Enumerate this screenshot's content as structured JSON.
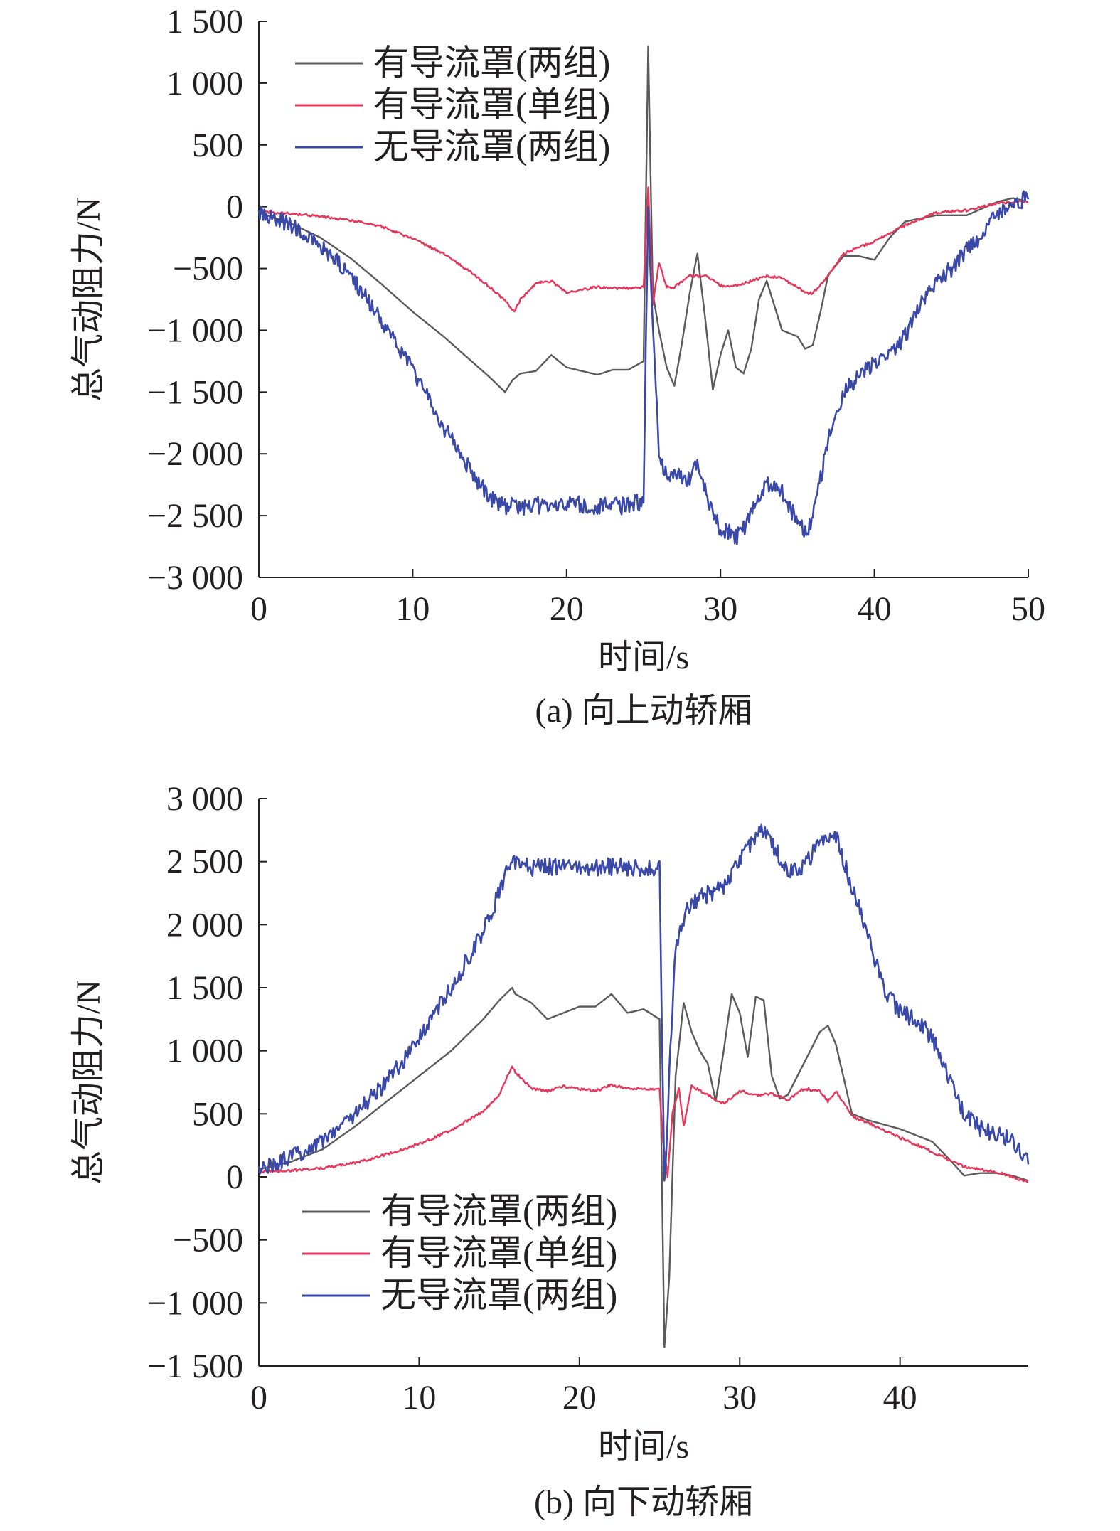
{
  "chart_data": [
    {
      "type": "line",
      "caption": "(a) 向上动轿厢",
      "xlabel": "时间/s",
      "ylabel": "总气动阻力/N",
      "xlim": [
        0,
        50
      ],
      "ylim": [
        -3000,
        1500
      ],
      "xticks": [
        "0",
        "10",
        "20",
        "30",
        "40",
        "50"
      ],
      "yticks": [
        "−3 000",
        "−2 500",
        "−2 000",
        "−1 500",
        "−1 000",
        "−500",
        "0",
        "500",
        "1 000",
        "1 500"
      ],
      "xtick_values": [
        0,
        10,
        20,
        30,
        40,
        50
      ],
      "ytick_values": [
        -3000,
        -2500,
        -2000,
        -1500,
        -1000,
        -500,
        0,
        500,
        1000,
        1500
      ],
      "legend_position": "top-left",
      "noise": [
        0,
        10,
        70
      ],
      "series": [
        {
          "name": "有导流罩(两组)",
          "color": "#5b5b5b",
          "x": [
            0,
            2,
            4,
            6,
            8,
            10,
            12,
            14,
            15,
            16,
            16.5,
            17,
            18,
            19,
            20,
            21,
            22,
            23,
            24,
            25,
            25.3,
            25.6,
            26,
            26.5,
            27,
            27.5,
            28,
            28.5,
            29,
            29.5,
            30,
            30.5,
            31,
            31.5,
            32,
            32.5,
            33,
            33.5,
            34,
            35,
            35.5,
            36,
            36.5,
            37,
            38,
            39,
            40,
            41,
            42,
            44,
            46,
            48,
            49,
            50
          ],
          "y": [
            -50,
            -130,
            -250,
            -420,
            -630,
            -850,
            -1050,
            -1270,
            -1380,
            -1500,
            -1400,
            -1350,
            -1330,
            -1200,
            -1300,
            -1330,
            -1360,
            -1320,
            -1320,
            -1250,
            1300,
            -700,
            -1000,
            -1300,
            -1450,
            -1100,
            -700,
            -380,
            -900,
            -1480,
            -1200,
            -1000,
            -1300,
            -1350,
            -1150,
            -750,
            -600,
            -800,
            -1000,
            -1050,
            -1150,
            -1120,
            -850,
            -550,
            -400,
            -400,
            -430,
            -250,
            -120,
            -70,
            -70,
            40,
            70,
            40
          ]
        },
        {
          "name": "有导流罩(单组)",
          "color": "#e8365a",
          "x": [
            0,
            2,
            4,
            6,
            8,
            10,
            12,
            14,
            15,
            16,
            16.6,
            17,
            18,
            19,
            20,
            21,
            22,
            23,
            24,
            25,
            25.3,
            25.6,
            26,
            26.5,
            27,
            28,
            29,
            30,
            31,
            32,
            33,
            34,
            35,
            35.5,
            36,
            37,
            38,
            40,
            42,
            44,
            46,
            48,
            49,
            50
          ],
          "y": [
            -40,
            -55,
            -80,
            -110,
            -160,
            -260,
            -380,
            -550,
            -650,
            -760,
            -850,
            -750,
            -620,
            -600,
            -700,
            -670,
            -650,
            -660,
            -660,
            -650,
            150,
            -800,
            -450,
            -650,
            -650,
            -560,
            -560,
            -640,
            -640,
            -600,
            -560,
            -580,
            -650,
            -700,
            -700,
            -560,
            -380,
            -280,
            -150,
            -50,
            -30,
            30,
            40,
            40
          ]
        },
        {
          "name": "无导流罩(两组)",
          "color": "#3a48a8",
          "x": [
            0,
            2,
            4,
            6,
            8,
            10,
            12,
            14,
            15,
            16,
            17,
            18,
            20,
            22,
            24,
            25,
            25.3,
            25.6,
            26,
            26.5,
            27,
            28,
            28.5,
            29,
            29.5,
            30,
            30.5,
            31,
            31.5,
            32,
            33,
            34,
            35,
            35.5,
            36,
            37,
            38,
            40,
            41,
            42,
            43,
            44,
            45,
            46,
            47,
            48,
            49,
            50
          ],
          "y": [
            -50,
            -150,
            -320,
            -560,
            -920,
            -1320,
            -1780,
            -2180,
            -2350,
            -2420,
            -2430,
            -2420,
            -2400,
            -2420,
            -2420,
            -2380,
            50,
            -1000,
            -2000,
            -2200,
            -2180,
            -2200,
            -2100,
            -2300,
            -2500,
            -2600,
            -2620,
            -2680,
            -2600,
            -2480,
            -2250,
            -2300,
            -2550,
            -2650,
            -2500,
            -1900,
            -1500,
            -1250,
            -1200,
            -1050,
            -800,
            -600,
            -500,
            -350,
            -250,
            -50,
            50,
            60
          ]
        }
      ]
    },
    {
      "type": "line",
      "caption": "(b) 向下动轿厢",
      "xlabel": "时间/s",
      "ylabel": "总气动阻力/N",
      "xlim": [
        0,
        48
      ],
      "ylim": [
        -1500,
        3000
      ],
      "xticks": [
        "0",
        "10",
        "20",
        "30",
        "40"
      ],
      "yticks": [
        "−1 500",
        "−1 000",
        "−500",
        "0",
        "500",
        "1 000",
        "1 500",
        "2 000",
        "2 500",
        "3 000"
      ],
      "xtick_values": [
        0,
        10,
        20,
        30,
        40
      ],
      "ytick_values": [
        -1500,
        -1000,
        -500,
        0,
        500,
        1000,
        1500,
        2000,
        2500,
        3000
      ],
      "legend_position": "bottom-left",
      "noise": [
        0,
        10,
        70
      ],
      "series": [
        {
          "name": "有导流罩(两组)",
          "color": "#5b5b5b",
          "x": [
            0,
            2,
            4,
            6,
            8,
            10,
            12,
            14,
            15,
            15.8,
            16,
            17,
            18,
            19,
            20,
            21,
            22,
            23,
            24,
            25,
            25.3,
            25.6,
            26,
            26.5,
            27,
            27.5,
            28,
            28.5,
            29,
            29.5,
            30,
            30.5,
            31,
            31.5,
            32,
            32.5,
            33,
            34,
            35,
            35.5,
            36,
            37,
            38,
            40,
            42,
            43,
            44,
            45,
            46,
            47,
            48
          ],
          "y": [
            60,
            120,
            220,
            400,
            600,
            800,
            1000,
            1250,
            1400,
            1500,
            1450,
            1380,
            1250,
            1300,
            1350,
            1350,
            1450,
            1300,
            1330,
            1250,
            -1350,
            -800,
            800,
            1380,
            1150,
            1000,
            900,
            600,
            1000,
            1450,
            1300,
            950,
            1430,
            1400,
            800,
            620,
            650,
            900,
            1150,
            1200,
            1050,
            500,
            450,
            380,
            280,
            150,
            10,
            30,
            30,
            10,
            -30
          ]
        },
        {
          "name": "有导流罩(单组)",
          "color": "#e8365a",
          "x": [
            0,
            2,
            4,
            6,
            8,
            10,
            12,
            14,
            15,
            15.8,
            16,
            17,
            18,
            19,
            20,
            21,
            22,
            23,
            24,
            25,
            25.2,
            25.5,
            25.8,
            26.2,
            26.5,
            27,
            28,
            29,
            30,
            31,
            32,
            33,
            34,
            35,
            35.5,
            36,
            37,
            38,
            40,
            42,
            44,
            46,
            48
          ],
          "y": [
            40,
            50,
            70,
            110,
            180,
            260,
            370,
            520,
            650,
            880,
            830,
            700,
            680,
            720,
            700,
            680,
            730,
            700,
            700,
            690,
            300,
            0,
            500,
            700,
            400,
            720,
            650,
            580,
            680,
            650,
            660,
            610,
            700,
            680,
            600,
            680,
            480,
            430,
            310,
            200,
            80,
            40,
            -40
          ]
        },
        {
          "name": "无导流罩(两组)",
          "color": "#3a48a8",
          "x": [
            0,
            2,
            4,
            6,
            8,
            10,
            12,
            14,
            15,
            15.8,
            16,
            17,
            18,
            20,
            22,
            24,
            25,
            25.3,
            25.6,
            26,
            26.5,
            27,
            28,
            29,
            30,
            31,
            31.5,
            32,
            33,
            34,
            35,
            35.5,
            36,
            37,
            38,
            39,
            40,
            41,
            42,
            43,
            44,
            45,
            46,
            47,
            48
          ],
          "y": [
            60,
            150,
            300,
            500,
            750,
            1100,
            1500,
            1950,
            2250,
            2520,
            2480,
            2450,
            2460,
            2450,
            2460,
            2450,
            2450,
            -80,
            800,
            1800,
            2050,
            2180,
            2240,
            2300,
            2500,
            2700,
            2760,
            2650,
            2400,
            2450,
            2650,
            2700,
            2700,
            2300,
            1900,
            1500,
            1300,
            1250,
            1100,
            800,
            500,
            380,
            350,
            280,
            100
          ]
        }
      ]
    }
  ]
}
